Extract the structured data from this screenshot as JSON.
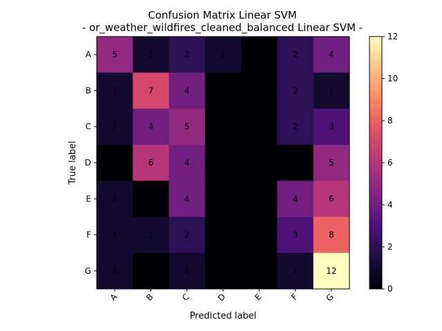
{
  "chart_data": {
    "type": "heatmap",
    "title": "Confusion Matrix Linear SVM",
    "subtitle": "- or_weather_wildfires_cleaned_balanced Linear SVM -",
    "xlabel": "Predicted label",
    "ylabel": "True label",
    "x_categories": [
      "A",
      "B",
      "C",
      "D",
      "E",
      "F",
      "G"
    ],
    "y_categories": [
      "A",
      "B",
      "C",
      "D",
      "E",
      "F",
      "G"
    ],
    "values": [
      [
        5,
        1,
        2,
        1,
        0,
        2,
        4
      ],
      [
        1,
        7,
        4,
        0,
        0,
        2,
        1
      ],
      [
        1,
        4,
        5,
        0,
        0,
        2,
        3
      ],
      [
        0,
        6,
        4,
        0,
        0,
        0,
        5
      ],
      [
        1,
        0,
        4,
        0,
        0,
        4,
        6
      ],
      [
        1,
        1,
        2,
        0,
        0,
        3,
        8
      ],
      [
        1,
        0,
        1,
        0,
        0,
        1,
        12
      ]
    ],
    "colormap": "magma",
    "colorbar": {
      "min": 0,
      "max": 12,
      "ticks": [
        0,
        2,
        4,
        6,
        8,
        10,
        12
      ]
    }
  }
}
